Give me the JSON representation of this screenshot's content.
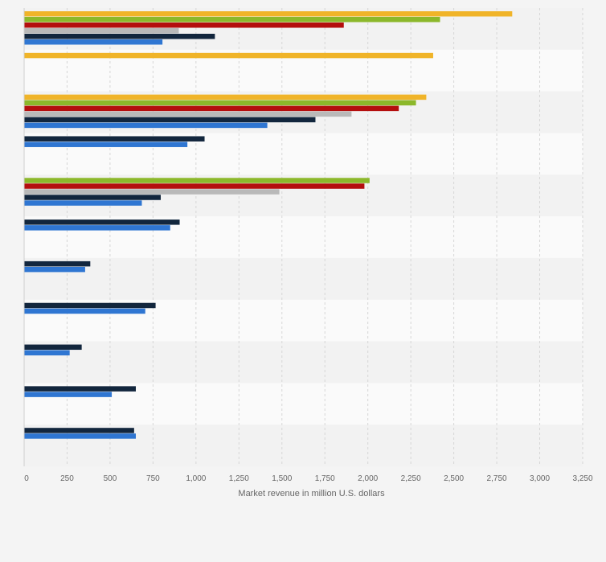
{
  "chart_data": {
    "type": "bar",
    "orientation": "horizontal",
    "title": "",
    "xlabel": "Market revenue in million U.S. dollars",
    "ylabel": "",
    "xlim": [
      0,
      3250
    ],
    "x_ticks": [
      "0",
      "250",
      "500",
      "750",
      "1,000",
      "1,250",
      "1,500",
      "1,750",
      "2,000",
      "2,250",
      "2,500",
      "2,750",
      "3,000",
      "3,250"
    ],
    "grid": true,
    "legend": "none",
    "categories": [
      "",
      "",
      "",
      "",
      "",
      "",
      "",
      "",
      "",
      "",
      ""
    ],
    "series": [
      {
        "color": "#f0b429",
        "values": [
          2840,
          2380,
          2340,
          null,
          null,
          null,
          null,
          null,
          null,
          null,
          null
        ]
      },
      {
        "color": "#8cb82b",
        "values": [
          2420,
          null,
          2280,
          null,
          2010,
          null,
          null,
          null,
          null,
          null,
          null
        ]
      },
      {
        "color": "#b40e0e",
        "values": [
          1860,
          null,
          2180,
          null,
          1980,
          null,
          null,
          null,
          null,
          null,
          null
        ]
      },
      {
        "color": "#b9b9b9",
        "values": [
          900,
          null,
          1905,
          null,
          1485,
          null,
          null,
          null,
          null,
          null,
          null
        ]
      },
      {
        "color": "#12263d",
        "values": [
          1110,
          null,
          1695,
          1050,
          795,
          905,
          385,
          765,
          335,
          650,
          640
        ]
      },
      {
        "color": "#2f76d2",
        "values": [
          805,
          null,
          1415,
          950,
          685,
          850,
          355,
          705,
          265,
          510,
          650
        ]
      }
    ]
  }
}
